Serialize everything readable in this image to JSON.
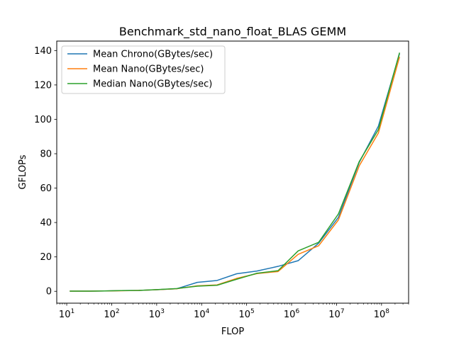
{
  "chart_data": {
    "type": "line",
    "title": "Benchmark_std_nano_float_BLAS GEMM",
    "xlabel": "FLOP",
    "ylabel": "GFLOPs",
    "xscale": "log",
    "xlim": [
      6,
      400000000
    ],
    "ylim": [
      -6.9,
      145.5
    ],
    "grid": false,
    "legend_position": "top-left",
    "x_ticks": [
      {
        "value": 10,
        "base": "10",
        "exp": "1"
      },
      {
        "value": 100,
        "base": "10",
        "exp": "2"
      },
      {
        "value": 1000,
        "base": "10",
        "exp": "3"
      },
      {
        "value": 10000,
        "base": "10",
        "exp": "4"
      },
      {
        "value": 100000,
        "base": "10",
        "exp": "5"
      },
      {
        "value": 1000000,
        "base": "10",
        "exp": "6"
      },
      {
        "value": 10000000,
        "base": "10",
        "exp": "7"
      },
      {
        "value": 100000000,
        "base": "10",
        "exp": "8"
      }
    ],
    "y_ticks": [
      {
        "value": 0,
        "label": "0"
      },
      {
        "value": 20,
        "label": "20"
      },
      {
        "value": 40,
        "label": "40"
      },
      {
        "value": 60,
        "label": "60"
      },
      {
        "value": 80,
        "label": "80"
      },
      {
        "value": 100,
        "label": "100"
      },
      {
        "value": 120,
        "label": "120"
      },
      {
        "value": 140,
        "label": "140"
      }
    ],
    "x": [
      12,
      30,
      70,
      160,
      400,
      1000,
      2800,
      8000,
      22000,
      60000,
      170000,
      500000,
      1400000,
      4000000,
      11000000,
      32000000,
      85000000,
      250000000
    ],
    "series": [
      {
        "name": "Mean Chrono(GBytes/sec)",
        "color": "#1f77b4",
        "values": [
          0.1,
          0.1,
          0.2,
          0.4,
          0.5,
          0.9,
          1.5,
          5.2,
          6.3,
          10.2,
          11.8,
          14.5,
          17.8,
          28.0,
          43.0,
          75.0,
          96.0,
          138.0
        ]
      },
      {
        "name": "Mean Nano(GBytes/sec)",
        "color": "#ff7f0e",
        "values": [
          0.1,
          0.1,
          0.2,
          0.3,
          0.5,
          0.9,
          1.5,
          3.2,
          3.7,
          7.5,
          10.3,
          11.5,
          21.5,
          26.5,
          41.5,
          73.0,
          92.0,
          136.0
        ]
      },
      {
        "name": "Median Nano(GBytes/sec)",
        "color": "#2ca02c",
        "values": [
          0.1,
          0.1,
          0.2,
          0.4,
          0.5,
          1.0,
          1.6,
          3.0,
          3.5,
          7.0,
          10.5,
          12.0,
          23.5,
          28.5,
          45.0,
          75.5,
          94.0,
          138.5
        ]
      }
    ]
  }
}
